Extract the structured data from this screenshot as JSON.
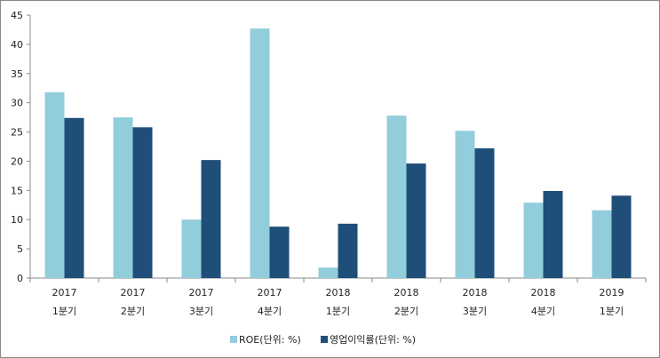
{
  "chart_data": {
    "type": "bar",
    "categories": [
      [
        "2017",
        "1분기"
      ],
      [
        "2017",
        "2분기"
      ],
      [
        "2017",
        "3분기"
      ],
      [
        "2017",
        "4분기"
      ],
      [
        "2018",
        "1분기"
      ],
      [
        "2018",
        "2분기"
      ],
      [
        "2018",
        "3분기"
      ],
      [
        "2018",
        "4분기"
      ],
      [
        "2019",
        "1분기"
      ]
    ],
    "series": [
      {
        "name": "ROE(단위: %)",
        "color": "#92CDDC",
        "values": [
          31.8,
          27.5,
          10.0,
          42.7,
          1.8,
          27.8,
          25.2,
          12.9,
          11.6
        ]
      },
      {
        "name": "영업이익률(단위: %)",
        "color": "#1F4E79",
        "values": [
          27.4,
          25.8,
          20.2,
          8.8,
          9.3,
          19.6,
          22.2,
          14.9,
          14.1
        ]
      }
    ],
    "yticks": [
      "0",
      "5",
      "10",
      "15",
      "20",
      "25",
      "30",
      "35",
      "40",
      "45"
    ],
    "ylim": [
      0,
      45
    ],
    "title": "",
    "xlabel": "",
    "ylabel": "",
    "legend_position": "bottom",
    "grid": false
  }
}
